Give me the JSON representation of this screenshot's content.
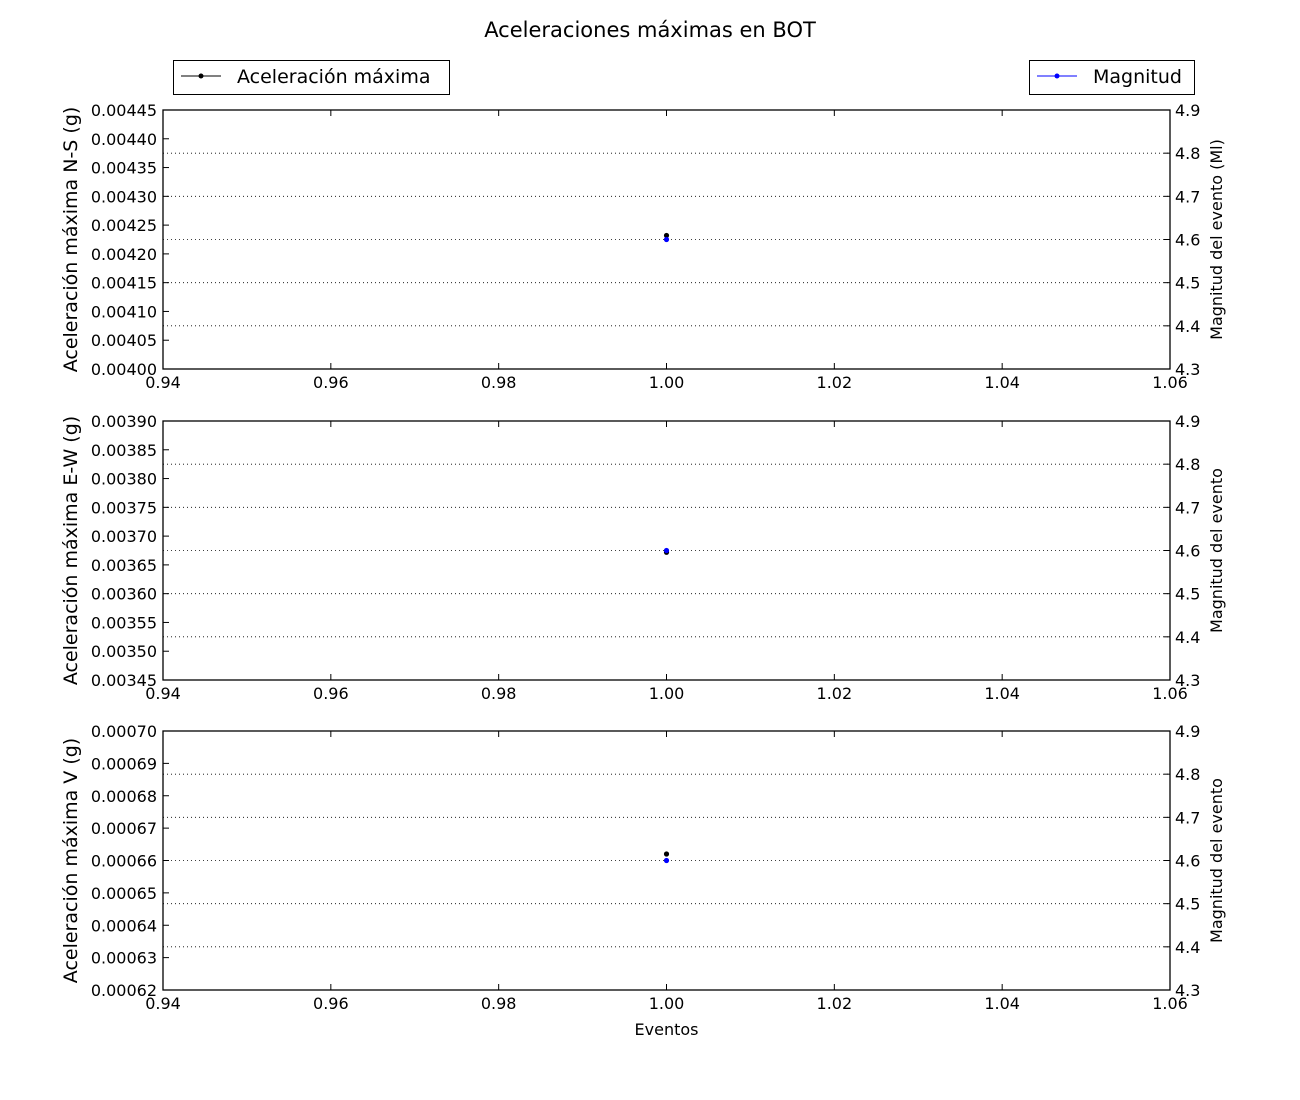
{
  "figure_title": "Aceleraciones máximas en BOT",
  "legend_left": {
    "label": "Aceleración máxima",
    "color": "#000000"
  },
  "legend_right": {
    "label": "Magnitud",
    "color": "#0000ff"
  },
  "chart_data": [
    {
      "type": "scatter",
      "xlabel": "",
      "ylabel": "Aceleración máxima N-S (g)",
      "y2label": "Magnitud del evento (Ml)",
      "xlim": [
        0.94,
        1.06
      ],
      "ylim": [
        0.004,
        0.00445
      ],
      "y2lim": [
        4.3,
        4.9
      ],
      "xticks": [
        "0.94",
        "0.96",
        "0.98",
        "1.00",
        "1.02",
        "1.04",
        "1.06"
      ],
      "yticks": [
        "0.00400",
        "0.00405",
        "0.00410",
        "0.00415",
        "0.00420",
        "0.00425",
        "0.00430",
        "0.00435",
        "0.00440",
        "0.00445"
      ],
      "y2ticks": [
        "4.3",
        "4.4",
        "4.5",
        "4.6",
        "4.7",
        "4.8",
        "4.9"
      ],
      "grid": "horizontal-dotted-right-axis",
      "series": [
        {
          "name": "Aceleración máxima",
          "axis": "left",
          "color": "#000000",
          "x": [
            1.0
          ],
          "y": [
            0.004232
          ]
        },
        {
          "name": "Magnitud",
          "axis": "right",
          "color": "#0000ff",
          "x": [
            1.0
          ],
          "y": [
            4.6
          ]
        }
      ]
    },
    {
      "type": "scatter",
      "xlabel": "",
      "ylabel": "Aceleración máxima E-W (g)",
      "y2label": "Magnitud del evento",
      "xlim": [
        0.94,
        1.06
      ],
      "ylim": [
        0.00345,
        0.0039
      ],
      "y2lim": [
        4.3,
        4.9
      ],
      "xticks": [
        "0.94",
        "0.96",
        "0.98",
        "1.00",
        "1.02",
        "1.04",
        "1.06"
      ],
      "yticks": [
        "0.00345",
        "0.00350",
        "0.00355",
        "0.00360",
        "0.00365",
        "0.00370",
        "0.00375",
        "0.00380",
        "0.00385",
        "0.00390"
      ],
      "y2ticks": [
        "4.3",
        "4.4",
        "4.5",
        "4.6",
        "4.7",
        "4.8",
        "4.9"
      ],
      "grid": "horizontal-dotted-right-axis",
      "series": [
        {
          "name": "Aceleración máxima",
          "axis": "left",
          "color": "#000000",
          "x": [
            1.0
          ],
          "y": [
            0.003672
          ]
        },
        {
          "name": "Magnitud",
          "axis": "right",
          "color": "#0000ff",
          "x": [
            1.0
          ],
          "y": [
            4.6
          ]
        }
      ]
    },
    {
      "type": "scatter",
      "xlabel": "Eventos",
      "ylabel": "Aceleración máxima V (g)",
      "y2label": "Magnitud del evento",
      "xlim": [
        0.94,
        1.06
      ],
      "ylim": [
        0.00062,
        0.0007
      ],
      "y2lim": [
        4.3,
        4.9
      ],
      "xticks": [
        "0.94",
        "0.96",
        "0.98",
        "1.00",
        "1.02",
        "1.04",
        "1.06"
      ],
      "yticks": [
        "0.00062",
        "0.00063",
        "0.00064",
        "0.00065",
        "0.00066",
        "0.00067",
        "0.00068",
        "0.00069",
        "0.00070"
      ],
      "y2ticks": [
        "4.3",
        "4.4",
        "4.5",
        "4.6",
        "4.7",
        "4.8",
        "4.9"
      ],
      "grid": "horizontal-dotted-right-axis",
      "series": [
        {
          "name": "Aceleración máxima",
          "axis": "left",
          "color": "#000000",
          "x": [
            1.0
          ],
          "y": [
            0.000662
          ]
        },
        {
          "name": "Magnitud",
          "axis": "right",
          "color": "#0000ff",
          "x": [
            1.0
          ],
          "y": [
            4.6
          ]
        }
      ]
    }
  ]
}
